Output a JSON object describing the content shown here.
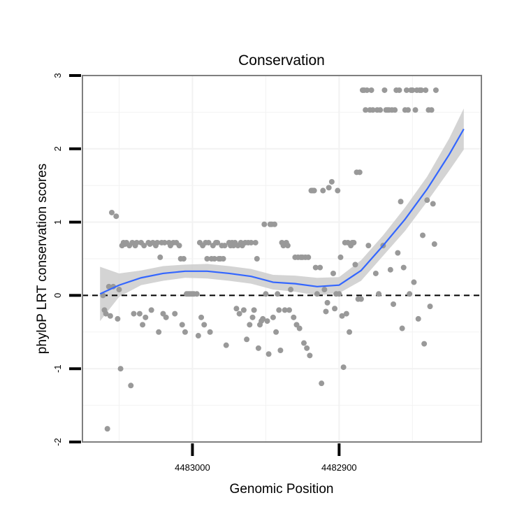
{
  "chart_data": {
    "type": "scatter",
    "title": "Conservation",
    "xlabel": "Genomic Position",
    "ylabel": "phyloP LRT conservation scores",
    "xlim": [
      4483075,
      4482803
    ],
    "ylim": [
      -2.0,
      3.0
    ],
    "x_reversed": true,
    "x_ticks": [
      {
        "value": 4483000,
        "label": "4483000"
      },
      {
        "value": 4482900,
        "label": "4482900"
      }
    ],
    "y_ticks": [
      {
        "value": -2,
        "label": "-2"
      },
      {
        "value": -1,
        "label": "-1"
      },
      {
        "value": 0,
        "label": "0"
      },
      {
        "value": 1,
        "label": "1"
      },
      {
        "value": 2,
        "label": "2"
      },
      {
        "value": 3,
        "label": "3"
      }
    ],
    "grid": true,
    "reference_line": {
      "y": 0,
      "style": "dashed"
    },
    "colors": {
      "points": "#999999",
      "smooth": "#3366ff",
      "band": "#cccccc",
      "border": "#7f7f7f",
      "grid": "#f2f2f2"
    },
    "smooth": {
      "x": [
        4483063,
        4483050,
        4483035,
        4483020,
        4483005,
        4482990,
        4482975,
        4482960,
        4482945,
        4482930,
        4482915,
        4482900,
        4482885,
        4482870,
        4482855,
        4482840,
        4482825,
        4482815
      ],
      "y": [
        0.02,
        0.14,
        0.24,
        0.3,
        0.33,
        0.33,
        0.3,
        0.26,
        0.18,
        0.16,
        0.12,
        0.14,
        0.34,
        0.68,
        1.04,
        1.45,
        1.92,
        2.27
      ],
      "lower": [
        -0.35,
        -0.02,
        0.14,
        0.2,
        0.24,
        0.23,
        0.2,
        0.16,
        0.08,
        0.05,
        0.0,
        0.03,
        0.2,
        0.54,
        0.88,
        1.28,
        1.7,
        1.99
      ],
      "upper": [
        0.39,
        0.3,
        0.34,
        0.4,
        0.42,
        0.43,
        0.4,
        0.36,
        0.28,
        0.27,
        0.24,
        0.25,
        0.48,
        0.82,
        1.2,
        1.62,
        2.14,
        2.55
      ]
    },
    "points": [
      {
        "x": 4483061,
        "y": 0.0
      },
      {
        "x": 4483060,
        "y": -0.2
      },
      {
        "x": 4483059,
        "y": -0.25
      },
      {
        "x": 4483058,
        "y": -1.82
      },
      {
        "x": 4483057,
        "y": 0.12
      },
      {
        "x": 4483056,
        "y": -0.28
      },
      {
        "x": 4483055,
        "y": 1.13
      },
      {
        "x": 4483054,
        "y": 0.12
      },
      {
        "x": 4483052,
        "y": 1.08
      },
      {
        "x": 4483051,
        "y": -0.32
      },
      {
        "x": 4483050,
        "y": 0.08
      },
      {
        "x": 4483049,
        "y": -1.0
      },
      {
        "x": 4483048,
        "y": 0.68
      },
      {
        "x": 4483047,
        "y": 0.72
      },
      {
        "x": 4483046,
        "y": 0.7
      },
      {
        "x": 4483045,
        "y": 0.72
      },
      {
        "x": 4483043,
        "y": 0.68
      },
      {
        "x": 4483042,
        "y": -1.23
      },
      {
        "x": 4483041,
        "y": 0.72
      },
      {
        "x": 4483040,
        "y": -0.25
      },
      {
        "x": 4483039,
        "y": 0.68
      },
      {
        "x": 4483038,
        "y": 0.72
      },
      {
        "x": 4483036,
        "y": -0.25
      },
      {
        "x": 4483035,
        "y": 0.72
      },
      {
        "x": 4483034,
        "y": -0.4
      },
      {
        "x": 4483033,
        "y": 0.68
      },
      {
        "x": 4483032,
        "y": -0.3
      },
      {
        "x": 4483030,
        "y": 0.72
      },
      {
        "x": 4483029,
        "y": 0.7
      },
      {
        "x": 4483028,
        "y": -0.2
      },
      {
        "x": 4483027,
        "y": 0.72
      },
      {
        "x": 4483025,
        "y": 0.68
      },
      {
        "x": 4483024,
        "y": 0.72
      },
      {
        "x": 4483023,
        "y": -0.5
      },
      {
        "x": 4483022,
        "y": 0.52
      },
      {
        "x": 4483021,
        "y": 0.72
      },
      {
        "x": 4483020,
        "y": -0.25
      },
      {
        "x": 4483019,
        "y": 0.72
      },
      {
        "x": 4483018,
        "y": -0.3
      },
      {
        "x": 4483016,
        "y": 0.72
      },
      {
        "x": 4483015,
        "y": 0.68
      },
      {
        "x": 4483013,
        "y": 0.72
      },
      {
        "x": 4483012,
        "y": -0.25
      },
      {
        "x": 4483011,
        "y": 0.72
      },
      {
        "x": 4483009,
        "y": 0.68
      },
      {
        "x": 4483008,
        "y": 0.5
      },
      {
        "x": 4483007,
        "y": -0.4
      },
      {
        "x": 4483006,
        "y": 0.5
      },
      {
        "x": 4483005,
        "y": -0.5
      },
      {
        "x": 4483004,
        "y": 0.02
      },
      {
        "x": 4483003,
        "y": 0.02
      },
      {
        "x": 4483002,
        "y": 0.02
      },
      {
        "x": 4483001,
        "y": 0.02
      },
      {
        "x": 4483000,
        "y": 0.02
      },
      {
        "x": 4482999,
        "y": 0.02
      },
      {
        "x": 4482997,
        "y": 0.02
      },
      {
        "x": 4482996,
        "y": -0.55
      },
      {
        "x": 4482995,
        "y": 0.72
      },
      {
        "x": 4482994,
        "y": -0.3
      },
      {
        "x": 4482993,
        "y": 0.68
      },
      {
        "x": 4482992,
        "y": -0.4
      },
      {
        "x": 4482991,
        "y": 0.72
      },
      {
        "x": 4482990,
        "y": 0.5
      },
      {
        "x": 4482989,
        "y": 0.72
      },
      {
        "x": 4482988,
        "y": -0.5
      },
      {
        "x": 4482987,
        "y": 0.5
      },
      {
        "x": 4482986,
        "y": 0.68
      },
      {
        "x": 4482985,
        "y": 0.5
      },
      {
        "x": 4482984,
        "y": 0.72
      },
      {
        "x": 4482983,
        "y": 0.72
      },
      {
        "x": 4482982,
        "y": 0.5
      },
      {
        "x": 4482981,
        "y": 0.5
      },
      {
        "x": 4482980,
        "y": 0.68
      },
      {
        "x": 4482979,
        "y": 0.5
      },
      {
        "x": 4482978,
        "y": 0.68
      },
      {
        "x": 4482977,
        "y": -0.68
      },
      {
        "x": 4482975,
        "y": 0.72
      },
      {
        "x": 4482974,
        "y": 0.68
      },
      {
        "x": 4482973,
        "y": 0.72
      },
      {
        "x": 4482972,
        "y": 0.68
      },
      {
        "x": 4482971,
        "y": 0.72
      },
      {
        "x": 4482970,
        "y": -0.18
      },
      {
        "x": 4482969,
        "y": 0.68
      },
      {
        "x": 4482968,
        "y": -0.25
      },
      {
        "x": 4482967,
        "y": 0.72
      },
      {
        "x": 4482966,
        "y": 0.68
      },
      {
        "x": 4482965,
        "y": -0.2
      },
      {
        "x": 4482964,
        "y": 0.72
      },
      {
        "x": 4482963,
        "y": -0.6
      },
      {
        "x": 4482962,
        "y": 0.72
      },
      {
        "x": 4482961,
        "y": -0.4
      },
      {
        "x": 4482960,
        "y": 0.72
      },
      {
        "x": 4482959,
        "y": -0.3
      },
      {
        "x": 4482958,
        "y": -0.2
      },
      {
        "x": 4482957,
        "y": 0.72
      },
      {
        "x": 4482956,
        "y": 0.5
      },
      {
        "x": 4482955,
        "y": -0.72
      },
      {
        "x": 4482954,
        "y": -0.4
      },
      {
        "x": 4482953,
        "y": -0.35
      },
      {
        "x": 4482952,
        "y": -0.32
      },
      {
        "x": 4482951,
        "y": 0.97
      },
      {
        "x": 4482950,
        "y": 0.02
      },
      {
        "x": 4482949,
        "y": -0.35
      },
      {
        "x": 4482948,
        "y": -0.8
      },
      {
        "x": 4482947,
        "y": 0.97
      },
      {
        "x": 4482946,
        "y": 0.97
      },
      {
        "x": 4482945,
        "y": -0.3
      },
      {
        "x": 4482944,
        "y": 0.97
      },
      {
        "x": 4482943,
        "y": -0.5
      },
      {
        "x": 4482942,
        "y": 0.02
      },
      {
        "x": 4482941,
        "y": -0.2
      },
      {
        "x": 4482940,
        "y": -0.75
      },
      {
        "x": 4482939,
        "y": 0.72
      },
      {
        "x": 4482938,
        "y": 0.68
      },
      {
        "x": 4482937,
        "y": -0.2
      },
      {
        "x": 4482936,
        "y": 0.72
      },
      {
        "x": 4482935,
        "y": 0.68
      },
      {
        "x": 4482934,
        "y": -0.2
      },
      {
        "x": 4482933,
        "y": 0.08
      },
      {
        "x": 4482931,
        "y": -0.3
      },
      {
        "x": 4482930,
        "y": 0.52
      },
      {
        "x": 4482929,
        "y": -0.4
      },
      {
        "x": 4482928,
        "y": 0.52
      },
      {
        "x": 4482927,
        "y": -0.45
      },
      {
        "x": 4482926,
        "y": 0.52
      },
      {
        "x": 4482925,
        "y": 0.52
      },
      {
        "x": 4482924,
        "y": -0.65
      },
      {
        "x": 4482923,
        "y": 0.52
      },
      {
        "x": 4482922,
        "y": -0.72
      },
      {
        "x": 4482921,
        "y": 0.52
      },
      {
        "x": 4482920,
        "y": -0.82
      },
      {
        "x": 4482919,
        "y": 1.43
      },
      {
        "x": 4482918,
        "y": 1.43
      },
      {
        "x": 4482917,
        "y": 1.43
      },
      {
        "x": 4482916,
        "y": 0.38
      },
      {
        "x": 4482915,
        "y": 0.02
      },
      {
        "x": 4482913,
        "y": 0.38
      },
      {
        "x": 4482912,
        "y": -1.2
      },
      {
        "x": 4482911,
        "y": 1.43
      },
      {
        "x": 4482910,
        "y": 0.08
      },
      {
        "x": 4482909,
        "y": -0.22
      },
      {
        "x": 4482908,
        "y": -0.1
      },
      {
        "x": 4482907,
        "y": 1.47
      },
      {
        "x": 4482905,
        "y": 1.55
      },
      {
        "x": 4482904,
        "y": 0.3
      },
      {
        "x": 4482903,
        "y": -0.18
      },
      {
        "x": 4482902,
        "y": 0.02
      },
      {
        "x": 4482901,
        "y": 1.43
      },
      {
        "x": 4482900,
        "y": 0.02
      },
      {
        "x": 4482899,
        "y": 0.52
      },
      {
        "x": 4482898,
        "y": -0.28
      },
      {
        "x": 4482897,
        "y": -0.98
      },
      {
        "x": 4482896,
        "y": 0.72
      },
      {
        "x": 4482895,
        "y": -0.25
      },
      {
        "x": 4482894,
        "y": 0.72
      },
      {
        "x": 4482893,
        "y": -0.5
      },
      {
        "x": 4482892,
        "y": 0.68
      },
      {
        "x": 4482891,
        "y": 0.72
      },
      {
        "x": 4482890,
        "y": 0.72
      },
      {
        "x": 4482889,
        "y": 0.42
      },
      {
        "x": 4482888,
        "y": 1.68
      },
      {
        "x": 4482887,
        "y": -0.05
      },
      {
        "x": 4482886,
        "y": 1.68
      },
      {
        "x": 4482885,
        "y": -0.05
      },
      {
        "x": 4482884,
        "y": 2.8
      },
      {
        "x": 4482883,
        "y": 2.8
      },
      {
        "x": 4482882,
        "y": 2.53
      },
      {
        "x": 4482881,
        "y": 2.8
      },
      {
        "x": 4482880,
        "y": 0.68
      },
      {
        "x": 4482879,
        "y": 2.53
      },
      {
        "x": 4482878,
        "y": 2.8
      },
      {
        "x": 4482877,
        "y": 2.53
      },
      {
        "x": 4482875,
        "y": 0.3
      },
      {
        "x": 4482874,
        "y": 2.53
      },
      {
        "x": 4482873,
        "y": 0.02
      },
      {
        "x": 4482872,
        "y": 2.53
      },
      {
        "x": 4482870,
        "y": 0.68
      },
      {
        "x": 4482869,
        "y": 2.8
      },
      {
        "x": 4482868,
        "y": 2.53
      },
      {
        "x": 4482867,
        "y": 2.53
      },
      {
        "x": 4482866,
        "y": 2.53
      },
      {
        "x": 4482865,
        "y": 0.35
      },
      {
        "x": 4482864,
        "y": 2.53
      },
      {
        "x": 4482863,
        "y": -0.12
      },
      {
        "x": 4482862,
        "y": 2.53
      },
      {
        "x": 4482861,
        "y": 2.8
      },
      {
        "x": 4482860,
        "y": 0.58
      },
      {
        "x": 4482859,
        "y": 2.8
      },
      {
        "x": 4482858,
        "y": 1.28
      },
      {
        "x": 4482857,
        "y": -0.45
      },
      {
        "x": 4482856,
        "y": 0.38
      },
      {
        "x": 4482855,
        "y": 2.53
      },
      {
        "x": 4482854,
        "y": 2.8
      },
      {
        "x": 4482853,
        "y": 2.53
      },
      {
        "x": 4482852,
        "y": 0.02
      },
      {
        "x": 4482851,
        "y": 2.8
      },
      {
        "x": 4482850,
        "y": 2.8
      },
      {
        "x": 4482849,
        "y": 0.18
      },
      {
        "x": 4482848,
        "y": 2.53
      },
      {
        "x": 4482847,
        "y": 2.8
      },
      {
        "x": 4482846,
        "y": -0.32
      },
      {
        "x": 4482845,
        "y": 2.8
      },
      {
        "x": 4482844,
        "y": 2.8
      },
      {
        "x": 4482843,
        "y": 0.82
      },
      {
        "x": 4482842,
        "y": -0.66
      },
      {
        "x": 4482841,
        "y": 2.8
      },
      {
        "x": 4482840,
        "y": 1.3
      },
      {
        "x": 4482839,
        "y": 2.53
      },
      {
        "x": 4482838,
        "y": -0.15
      },
      {
        "x": 4482837,
        "y": 2.53
      },
      {
        "x": 4482836,
        "y": 1.25
      },
      {
        "x": 4482835,
        "y": 0.7
      },
      {
        "x": 4482834,
        "y": 2.8
      }
    ]
  }
}
